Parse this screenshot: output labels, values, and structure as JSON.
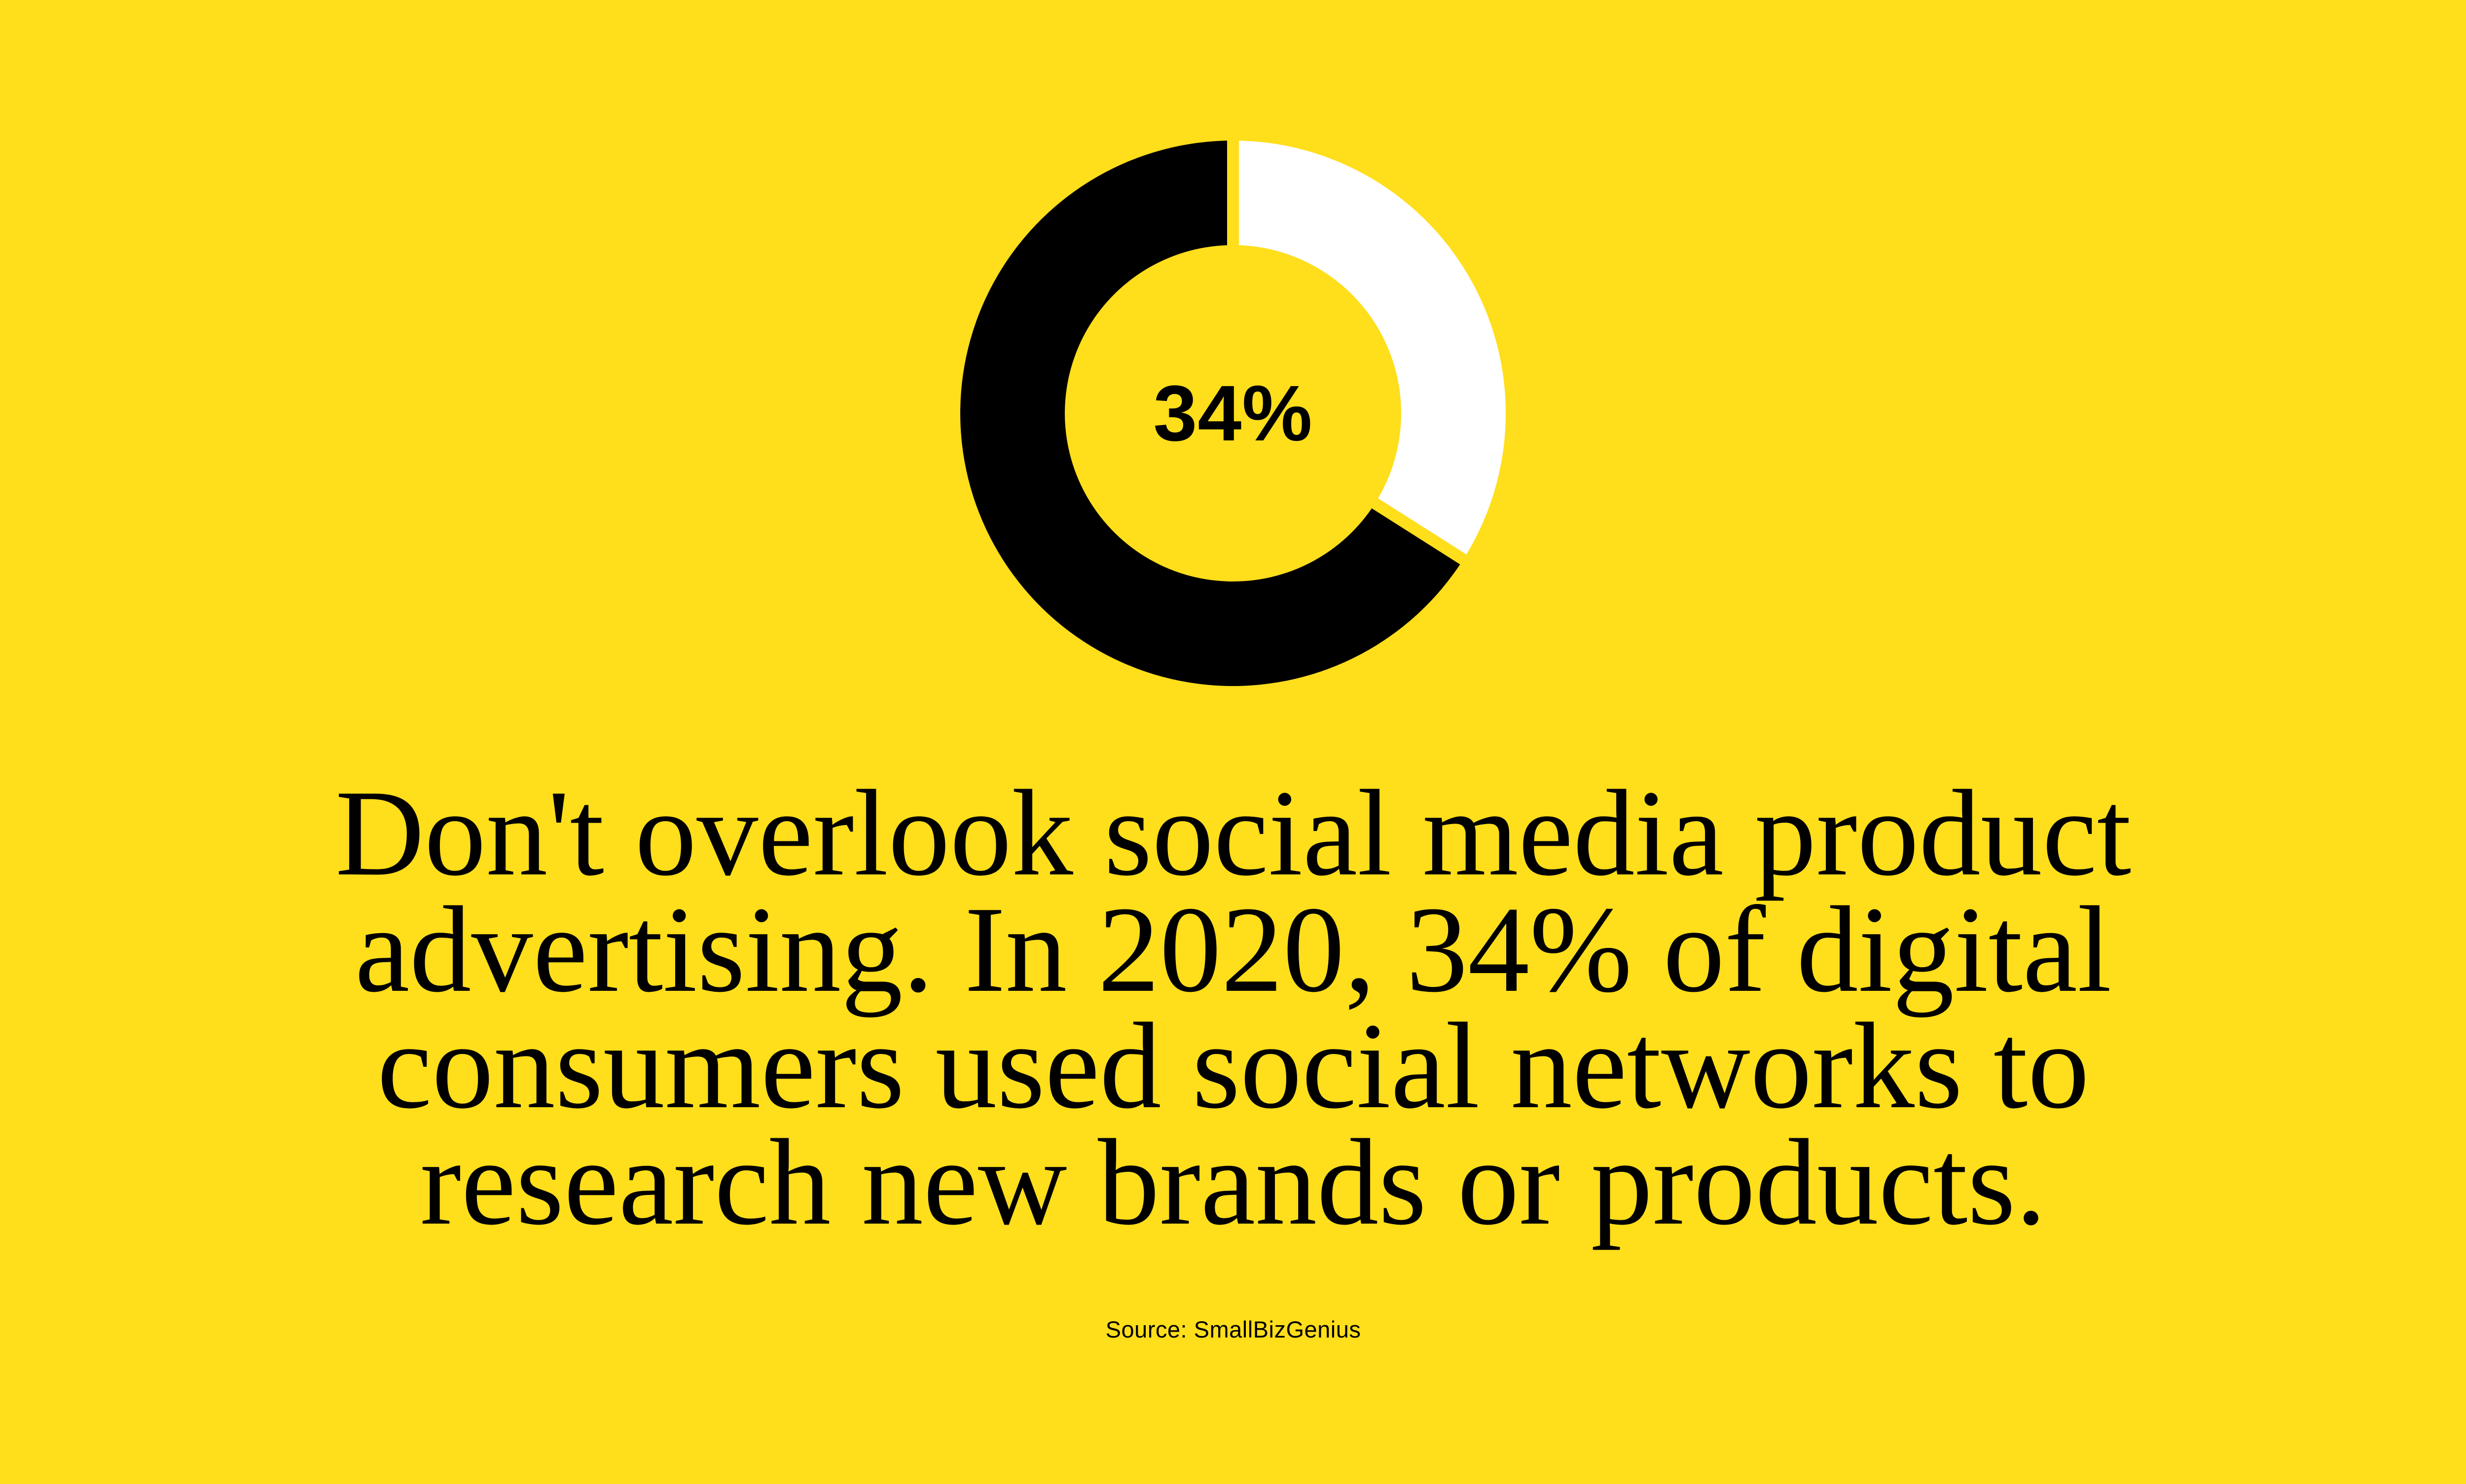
{
  "colors": {
    "background": "#FFDE1B",
    "text": "#000000"
  },
  "chart_data": {
    "type": "pie",
    "subtype": "donut",
    "center_label": "34%",
    "start_angle_deg": 0,
    "direction": "clockwise",
    "inner_radius_ratio": 0.617,
    "separator": {
      "color": "#FFDE1B",
      "width": 24
    },
    "slices": [
      {
        "name": "highlighted-share",
        "value": 34,
        "color": "#FFFFFF"
      },
      {
        "name": "remainder",
        "value": 66,
        "color": "#000000"
      }
    ],
    "legend": "none",
    "title": ""
  },
  "statistic": {
    "headline_lines": [
      "Don't overlook social media product",
      "advertising. In 2020, 34% of digital",
      "consumers used social networks to",
      "research new brands or products."
    ],
    "headline_text": "Don't overlook social media product advertising. In 2020, 34% of digital consumers used social networks to research new brands or products.",
    "source": "Source: SmallBizGenius"
  }
}
